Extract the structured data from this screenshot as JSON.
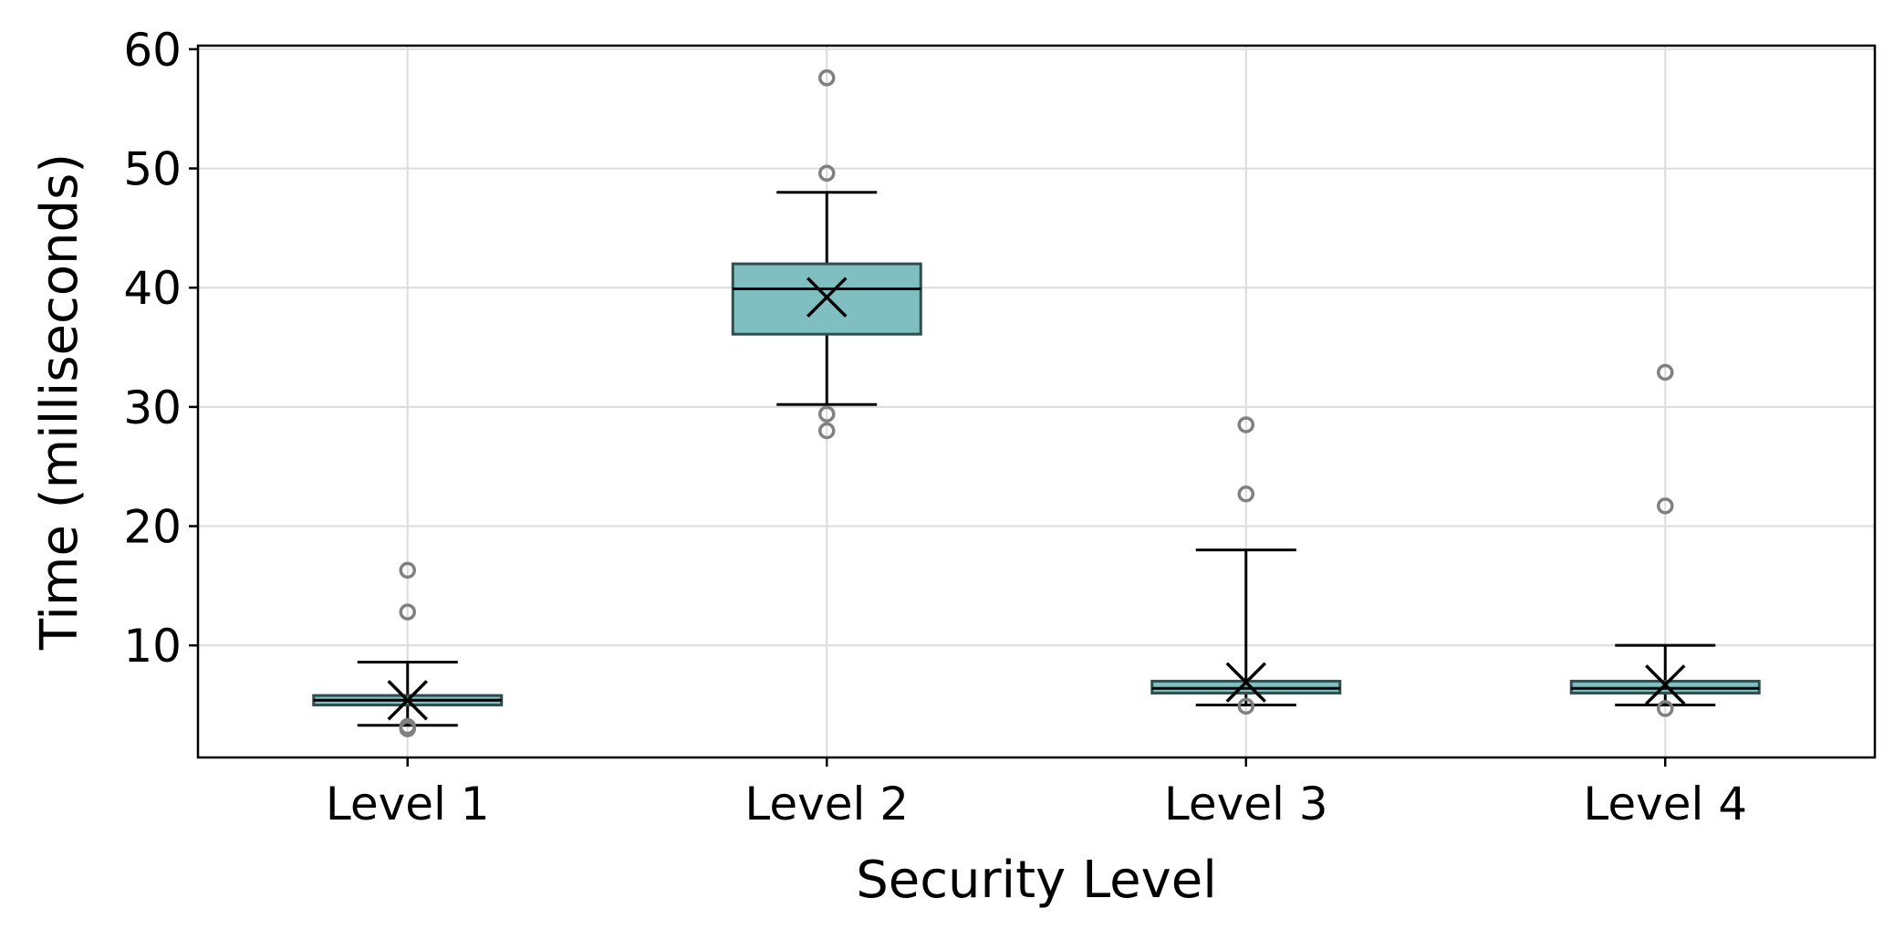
{
  "chart_data": {
    "type": "box",
    "title": "",
    "xlabel": "Security Level",
    "ylabel": "Time (milliseconds)",
    "ylim": [
      0.6,
      60.3
    ],
    "yticks": [
      10,
      20,
      30,
      40,
      50,
      60
    ],
    "grid": true,
    "legend": "none",
    "colors": {
      "box_fill": "#80bfc1",
      "box_edge": "#2f4f4f",
      "whisker": "#000000",
      "median": "#000000",
      "mean_marker": "#000000",
      "outlier_edge": "#808080",
      "grid": "#dcdcdc"
    },
    "categories": [
      "Level 1",
      "Level 2",
      "Level 3",
      "Level 4"
    ],
    "boxes": [
      {
        "whisker_low": 3.3,
        "q1": 5.0,
        "median": 5.4,
        "q3": 5.8,
        "whisker_high": 8.6,
        "mean": 5.4,
        "outliers": [
          16.3,
          12.8,
          3.0,
          3.2
        ]
      },
      {
        "whisker_low": 30.2,
        "q1": 36.1,
        "median": 39.9,
        "q3": 42.0,
        "whisker_high": 48.0,
        "mean": 39.2,
        "outliers": [
          57.6,
          49.6,
          29.4,
          28.0
        ]
      },
      {
        "whisker_low": 5.0,
        "q1": 6.0,
        "median": 6.4,
        "q3": 7.0,
        "whisker_high": 18.0,
        "mean": 6.9,
        "outliers": [
          28.5,
          22.7,
          4.9
        ]
      },
      {
        "whisker_low": 5.0,
        "q1": 6.0,
        "median": 6.4,
        "q3": 7.0,
        "whisker_high": 10.0,
        "mean": 6.7,
        "outliers": [
          32.9,
          21.7,
          4.7
        ]
      }
    ]
  }
}
